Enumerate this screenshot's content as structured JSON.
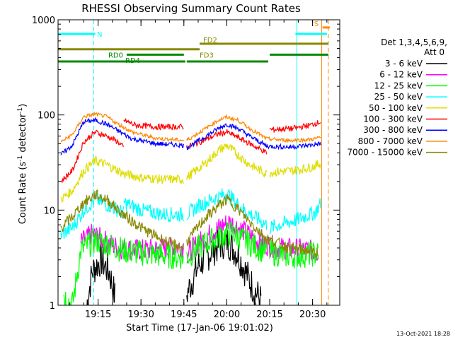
{
  "chart_data": {
    "type": "line",
    "title": "RHESSI Observing Summary Count Rates",
    "xlabel": "Start Time (17-Jan-06 19:01:02)",
    "ylabel_main": "Count Rate (s",
    "ylabel_sup": "-1",
    "ylabel_mid": " detector",
    "ylabel_end": ")",
    "y_scale": "log",
    "ylim": [
      1,
      1000
    ],
    "xlim_minutes_after_1900": [
      1.0,
      39.5
    ],
    "y_ticks": [
      {
        "value": 1,
        "label": "1"
      },
      {
        "value": 10,
        "label": "10"
      },
      {
        "value": 100,
        "label": "100"
      },
      {
        "value": 1000,
        "label": "1000"
      }
    ],
    "x_ticks": [
      {
        "value": 15,
        "label": "19:15"
      },
      {
        "value": 30,
        "label": "19:30"
      },
      {
        "value": 45,
        "label": "19:45"
      },
      {
        "value": 60,
        "label": "20:00"
      },
      {
        "value": 75,
        "label": "20:15"
      },
      {
        "value": 90,
        "label": "20:30"
      }
    ],
    "detector_note_line1": "Det 1,3,4,5,6,9,",
    "detector_note_line2": "Att 0",
    "legend_position": "right",
    "timestamp": "13-Oct-2021 18:28",
    "series": [
      {
        "name": "3 - 6 keV",
        "color": "#000000",
        "segments": [
          [
            [
              11,
              1.0
            ],
            [
              13,
              2.3
            ],
            [
              16,
              3.0
            ],
            [
              19,
              2.2
            ],
            [
              21,
              1.2
            ]
          ],
          [
            [
              46,
              1.3
            ],
            [
              50,
              2.6
            ],
            [
              55,
              3.8
            ],
            [
              60,
              4.8
            ],
            [
              64,
              3.4
            ],
            [
              68,
              1.8
            ],
            [
              72,
              1.1
            ]
          ]
        ]
      },
      {
        "name": "6 - 12 keV",
        "color": "#ff00ff",
        "segments": [
          [
            [
              9,
              4.5
            ],
            [
              13,
              5.6
            ],
            [
              17,
              4.8
            ],
            [
              22,
              4.0
            ],
            [
              30,
              3.8
            ],
            [
              40,
              4.0
            ],
            [
              45,
              4.2
            ]
          ],
          [
            [
              46,
              3.5
            ],
            [
              52,
              5.0
            ],
            [
              58,
              6.8
            ],
            [
              61,
              7.5
            ],
            [
              66,
              6.0
            ],
            [
              72,
              4.5
            ],
            [
              78,
              4.0
            ],
            [
              88,
              3.8
            ],
            [
              92,
              3.6
            ]
          ]
        ]
      },
      {
        "name": "12 - 25 keV",
        "color": "#00ff00",
        "segments": [
          [
            [
              3,
              1.3
            ],
            [
              6,
              1.0
            ],
            [
              9,
              3.8
            ],
            [
              14,
              4.8
            ],
            [
              19,
              4.3
            ],
            [
              25,
              3.7
            ],
            [
              35,
              3.4
            ],
            [
              45,
              3.2
            ]
          ],
          [
            [
              46,
              3.2
            ],
            [
              52,
              4.4
            ],
            [
              58,
              5.3
            ],
            [
              62,
              5.8
            ],
            [
              66,
              4.8
            ],
            [
              74,
              3.6
            ]
          ],
          [
            [
              75,
              3.6
            ],
            [
              82,
              3.3
            ],
            [
              92,
              3.5
            ]
          ]
        ]
      },
      {
        "name": "25 - 50 keV",
        "color": "#00ffff",
        "segments": [
          [
            [
              2,
              5.5
            ],
            [
              6,
              6.5
            ],
            [
              10,
              10
            ],
            [
              14,
              13
            ],
            [
              18,
              11.5
            ],
            [
              22,
              10
            ],
            [
              24,
              9.2
            ]
          ],
          [
            [
              24,
              12
            ],
            [
              30,
              10
            ],
            [
              38,
              9
            ],
            [
              45,
              9
            ]
          ],
          [
            [
              46,
              9
            ],
            [
              50,
              11
            ],
            [
              55,
              13
            ],
            [
              60,
              15
            ],
            [
              66,
              10
            ],
            [
              74,
              7
            ]
          ],
          [
            [
              75,
              6.5
            ],
            [
              85,
              8
            ],
            [
              91,
              9.5
            ],
            [
              93,
              12
            ]
          ]
        ]
      },
      {
        "name": "50 - 100 keV",
        "color": "#dddd00",
        "segments": [
          [
            [
              2,
              13
            ],
            [
              6,
              16
            ],
            [
              10,
              26
            ],
            [
              14,
              33
            ],
            [
              18,
              30
            ],
            [
              22,
              26
            ],
            [
              24,
              24
            ]
          ],
          [
            [
              24,
              24
            ],
            [
              30,
              22
            ],
            [
              38,
              21
            ],
            [
              45,
              21
            ]
          ],
          [
            [
              46,
              22
            ],
            [
              52,
              30
            ],
            [
              57,
              42
            ],
            [
              60,
              48
            ],
            [
              63,
              40
            ],
            [
              68,
              30
            ],
            [
              74,
              24
            ]
          ],
          [
            [
              75,
              25
            ],
            [
              83,
              26
            ],
            [
              89,
              28
            ],
            [
              93,
              31
            ]
          ]
        ]
      },
      {
        "name": "100 - 300 keV",
        "color": "#ff0000",
        "segments": [
          [
            [
              2,
              20
            ],
            [
              6,
              26
            ],
            [
              10,
              52
            ],
            [
              14,
              66
            ],
            [
              18,
              60
            ],
            [
              22,
              52
            ],
            [
              24,
              45
            ]
          ],
          [
            [
              24,
              88
            ],
            [
              28,
              78
            ],
            [
              35,
              75
            ],
            [
              45,
              75
            ]
          ],
          [
            [
              46,
              46
            ],
            [
              52,
              54
            ],
            [
              57,
              63
            ],
            [
              60,
              66
            ],
            [
              63,
              60
            ],
            [
              68,
              50
            ],
            [
              74,
              40
            ]
          ],
          [
            [
              75,
              70
            ],
            [
              83,
              72
            ],
            [
              89,
              78
            ],
            [
              93,
              85
            ]
          ]
        ]
      },
      {
        "name": "300 - 800 keV",
        "color": "#0000ff",
        "segments": [
          [
            [
              2,
              38
            ],
            [
              6,
              48
            ],
            [
              10,
              85
            ],
            [
              14,
              88
            ],
            [
              18,
              80
            ],
            [
              22,
              68
            ],
            [
              27,
              56
            ],
            [
              35,
              50
            ],
            [
              45,
              48
            ]
          ],
          [
            [
              46,
              45
            ],
            [
              52,
              58
            ],
            [
              57,
              72
            ],
            [
              60,
              80
            ],
            [
              64,
              72
            ],
            [
              68,
              60
            ],
            [
              74,
              47
            ],
            [
              82,
              46
            ],
            [
              89,
              48
            ],
            [
              93,
              50
            ]
          ]
        ]
      },
      {
        "name": "800 - 7000 keV",
        "color": "#ff8800",
        "segments": [
          [
            [
              2,
              52
            ],
            [
              6,
              62
            ],
            [
              10,
              96
            ],
            [
              14,
              102
            ],
            [
              18,
              96
            ],
            [
              22,
              80
            ],
            [
              27,
              66
            ],
            [
              35,
              57
            ],
            [
              45,
              54
            ]
          ],
          [
            [
              46,
              54
            ],
            [
              52,
              70
            ],
            [
              57,
              88
            ],
            [
              60,
              95
            ],
            [
              64,
              88
            ],
            [
              68,
              72
            ],
            [
              74,
              56
            ],
            [
              82,
              54
            ],
            [
              89,
              55
            ],
            [
              93,
              58
            ]
          ]
        ]
      },
      {
        "name": "7000 - 15000 keV",
        "color": "#888800",
        "segments": [
          [
            [
              2,
              6.5
            ],
            [
              6,
              8.5
            ],
            [
              10,
              12
            ],
            [
              14,
              14.5
            ],
            [
              18,
              13
            ],
            [
              22,
              10
            ],
            [
              26,
              8
            ],
            [
              32,
              6
            ],
            [
              40,
              4.5
            ],
            [
              45,
              4
            ]
          ],
          [
            [
              46,
              4.6
            ],
            [
              52,
              8
            ],
            [
              57,
              11
            ],
            [
              60,
              13
            ],
            [
              63,
              11
            ],
            [
              68,
              7.5
            ],
            [
              74,
              5
            ],
            [
              82,
              4
            ],
            [
              92,
              3.6
            ]
          ]
        ]
      }
    ],
    "state_bars": [
      {
        "label": "N",
        "color": "#00ffff",
        "y": 710,
        "from": 1,
        "to": 14
      },
      {
        "label": "",
        "color": "#00ffff",
        "y": 710,
        "from": 84,
        "to": 95
      },
      {
        "label": "S",
        "color": "#ff8800",
        "y": 830,
        "from": 93.5,
        "to": 96
      },
      {
        "label": "FD2",
        "color": "#888800",
        "y": 560,
        "from": 50.5,
        "to": 95.5
      },
      {
        "label": "FD3",
        "color": "#888800",
        "y": 490,
        "from": 1,
        "to": 50.5
      },
      {
        "label": "RD0",
        "color": "#008800",
        "y": 430,
        "from": 25,
        "to": 45
      },
      {
        "label": "",
        "color": "#008800",
        "y": 430,
        "from": 75,
        "to": 95.5
      },
      {
        "label": "RD4",
        "color": "#008800",
        "y": 365,
        "from": 1,
        "to": 45.5
      },
      {
        "label": "",
        "color": "#008800",
        "y": 365,
        "from": 46,
        "to": 74.5
      }
    ],
    "vertical_markers": [
      {
        "x": 13.5,
        "color": "#00ffff",
        "style": "dashed"
      },
      {
        "x": 84.5,
        "color": "#00ffff",
        "style": "solid"
      },
      {
        "x": 93.2,
        "color": "#ff8800",
        "style": "solid"
      },
      {
        "x": 95.5,
        "color": "#ff8800",
        "style": "dashed"
      }
    ]
  }
}
